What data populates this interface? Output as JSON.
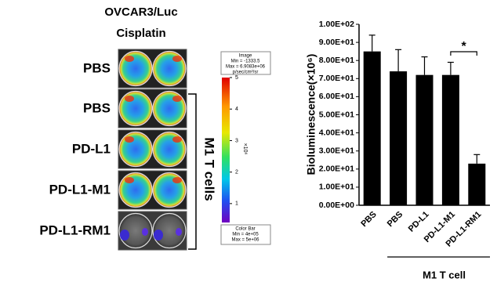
{
  "image_panel": {
    "title": [
      "OVCAR3/Luc",
      "Cisplatin"
    ],
    "rows": [
      "PBS",
      "PBS",
      "PD-L1",
      "PD-L1-M1",
      "PD-L1-RM1"
    ],
    "group_label": "M1 T cells",
    "colorbar": {
      "header": [
        "Image",
        "Min = -1333.5",
        "Max = 6.9083e+06",
        "p/sec/cm²/sr"
      ],
      "ticks": [
        5,
        4,
        3,
        2,
        1
      ],
      "range": [
        0.4,
        5
      ],
      "unit": "×10⁶",
      "footer": [
        "Color Bar",
        "Min = 4e+05",
        "Max = 5e+06"
      ]
    }
  },
  "chart_data": {
    "type": "bar",
    "y_label": "Bioluminescence(×10⁶)",
    "categories": [
      "PBS",
      "PBS",
      "PD-L1",
      "PD-L1-M1",
      "PD-L1-RM1"
    ],
    "values": [
      85,
      74,
      72,
      72,
      23
    ],
    "errors": [
      9,
      12,
      10,
      7,
      5
    ],
    "color": "#000000",
    "ylim": [
      0,
      100
    ],
    "yticks": [
      {
        "value": 0,
        "label": "0.00E+00"
      },
      {
        "value": 10,
        "label": "1.00E+01"
      },
      {
        "value": 20,
        "label": "2.00E+01"
      },
      {
        "value": 30,
        "label": "3.00E+01"
      },
      {
        "value": 40,
        "label": "4.00E+01"
      },
      {
        "value": 50,
        "label": "5.00E+01"
      },
      {
        "value": 60,
        "label": "6.00E+01"
      },
      {
        "value": 70,
        "label": "7.00E+01"
      },
      {
        "value": 80,
        "label": "8.00E+01"
      },
      {
        "value": 90,
        "label": "9.00E+01"
      },
      {
        "value": 100,
        "label": "1.00E+02"
      }
    ],
    "grid": false,
    "annotation": "*",
    "group_label": "M1  T cell"
  }
}
